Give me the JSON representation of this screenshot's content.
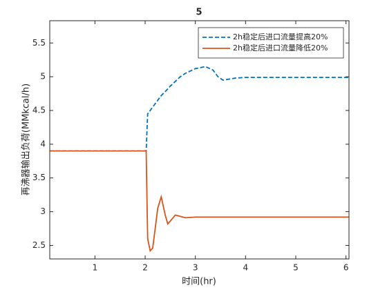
{
  "chart_data": {
    "type": "line",
    "title": "5",
    "xlabel": "时间(hr)",
    "ylabel": "再沸器输出负荷(MMkcal/h)",
    "x": [
      0.1,
      1,
      2,
      2.02,
      2.05,
      2.1,
      2.15,
      2.2,
      2.25,
      2.32,
      2.4,
      2.45,
      2.5,
      2.6,
      2.7,
      2.8,
      3,
      3.2,
      3.35,
      3.45,
      3.55,
      3.8,
      4,
      5,
      6.06
    ],
    "series": [
      {
        "name": "2h稳定后进口流量提高20%",
        "color": "#0072bd",
        "dash": true,
        "values": [
          3.9,
          3.9,
          3.9,
          3.9,
          4.45,
          4.5,
          4.55,
          4.6,
          4.65,
          4.72,
          4.78,
          4.82,
          4.86,
          4.93,
          5.0,
          5.05,
          5.12,
          5.15,
          5.1,
          5.0,
          4.95,
          4.98,
          4.99,
          4.99,
          4.99
        ]
      },
      {
        "name": "2h稳定后进口流量降低20%",
        "color": "#d95319",
        "dash": false,
        "values": [
          3.9,
          3.9,
          3.9,
          3.9,
          2.6,
          2.42,
          2.46,
          2.75,
          3.05,
          3.22,
          2.95,
          2.82,
          2.86,
          2.95,
          2.93,
          2.91,
          2.92,
          2.92,
          2.92,
          2.92,
          2.92,
          2.92,
          2.92,
          2.92,
          2.92
        ]
      }
    ],
    "xlim": [
      0.1,
      6.06
    ],
    "ylim": [
      2.3,
      5.83
    ],
    "xticks": [
      1,
      2,
      3,
      4,
      5,
      6
    ],
    "yticks": [
      2.5,
      3,
      3.5,
      4,
      4.5,
      5,
      5.5
    ],
    "legend": "top-right"
  }
}
